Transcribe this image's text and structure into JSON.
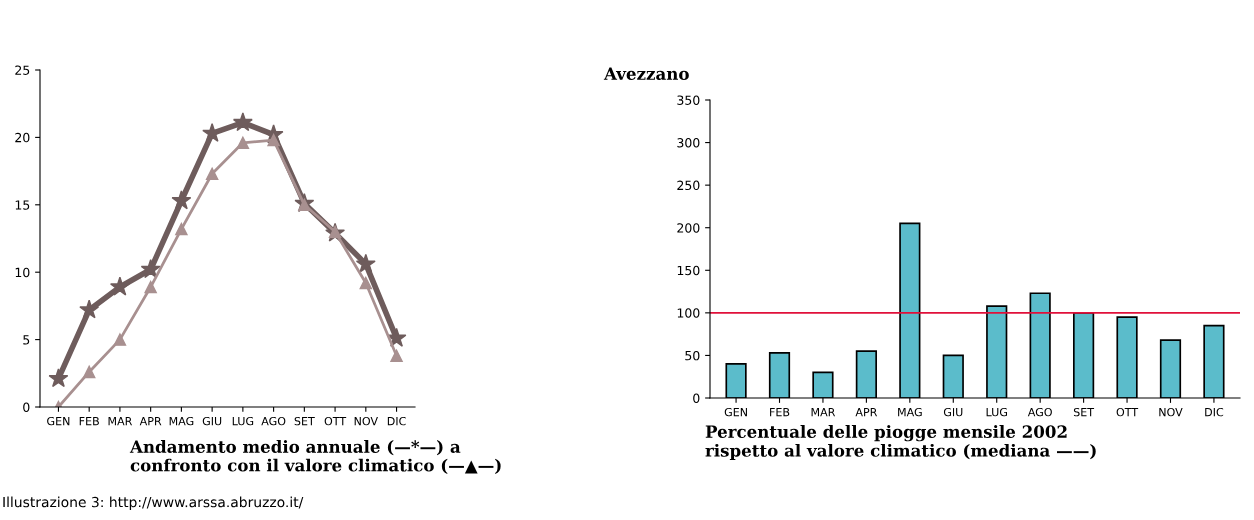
{
  "chart_data": [
    {
      "type": "line",
      "categories": [
        "GEN",
        "FEB",
        "MAR",
        "APR",
        "MAG",
        "GIU",
        "LUG",
        "AGO",
        "SET",
        "OTT",
        "NOV",
        "DIC"
      ],
      "series": [
        {
          "color": "#6e5c5c",
          "marker": "star",
          "values": [
            2.1,
            7.2,
            8.9,
            10.2,
            15.3,
            20.3,
            21.1,
            20.2,
            15.1,
            12.9,
            10.6,
            5.1
          ]
        },
        {
          "color": "#a89090",
          "marker": "triangle",
          "values": [
            0,
            2.6,
            5.0,
            8.9,
            13.2,
            17.3,
            19.6,
            19.8,
            15.0,
            13.0,
            9.2,
            3.8
          ]
        }
      ],
      "ylim": [
        0,
        25
      ],
      "yticks": [
        0,
        5,
        10,
        15,
        20,
        25
      ],
      "grid": false,
      "legend": false,
      "line_style": "solid",
      "annotations": [
        "Andamento medio annuale (—*—) a\nconfronto con il valore climatico (—▲—)",
        "Illustrazione 3: http://www.arssa.abruzzo.it/"
      ]
    },
    {
      "type": "bar",
      "title": "Avezzano",
      "categories": [
        "GEN",
        "FEB",
        "MAR",
        "APR",
        "MAG",
        "GIU",
        "LUG",
        "AGO",
        "SET",
        "OTT",
        "NOV",
        "DIC"
      ],
      "values": [
        40,
        53,
        30,
        55,
        205,
        50,
        108,
        123,
        100,
        95,
        68,
        85
      ],
      "color": "#5bbccb",
      "ylim": [
        0,
        350
      ],
      "yticks": [
        0,
        50,
        100,
        150,
        200,
        250,
        300,
        350
      ],
      "grid": false,
      "legend": false,
      "ref_lines": [
        {
          "axis": "y",
          "value": 100,
          "color": "#e0103a"
        }
      ],
      "annotations": [
        "Percentuale delle piogge mensile 2002\nrispetto al valore climatico (mediana ——)"
      ]
    }
  ]
}
